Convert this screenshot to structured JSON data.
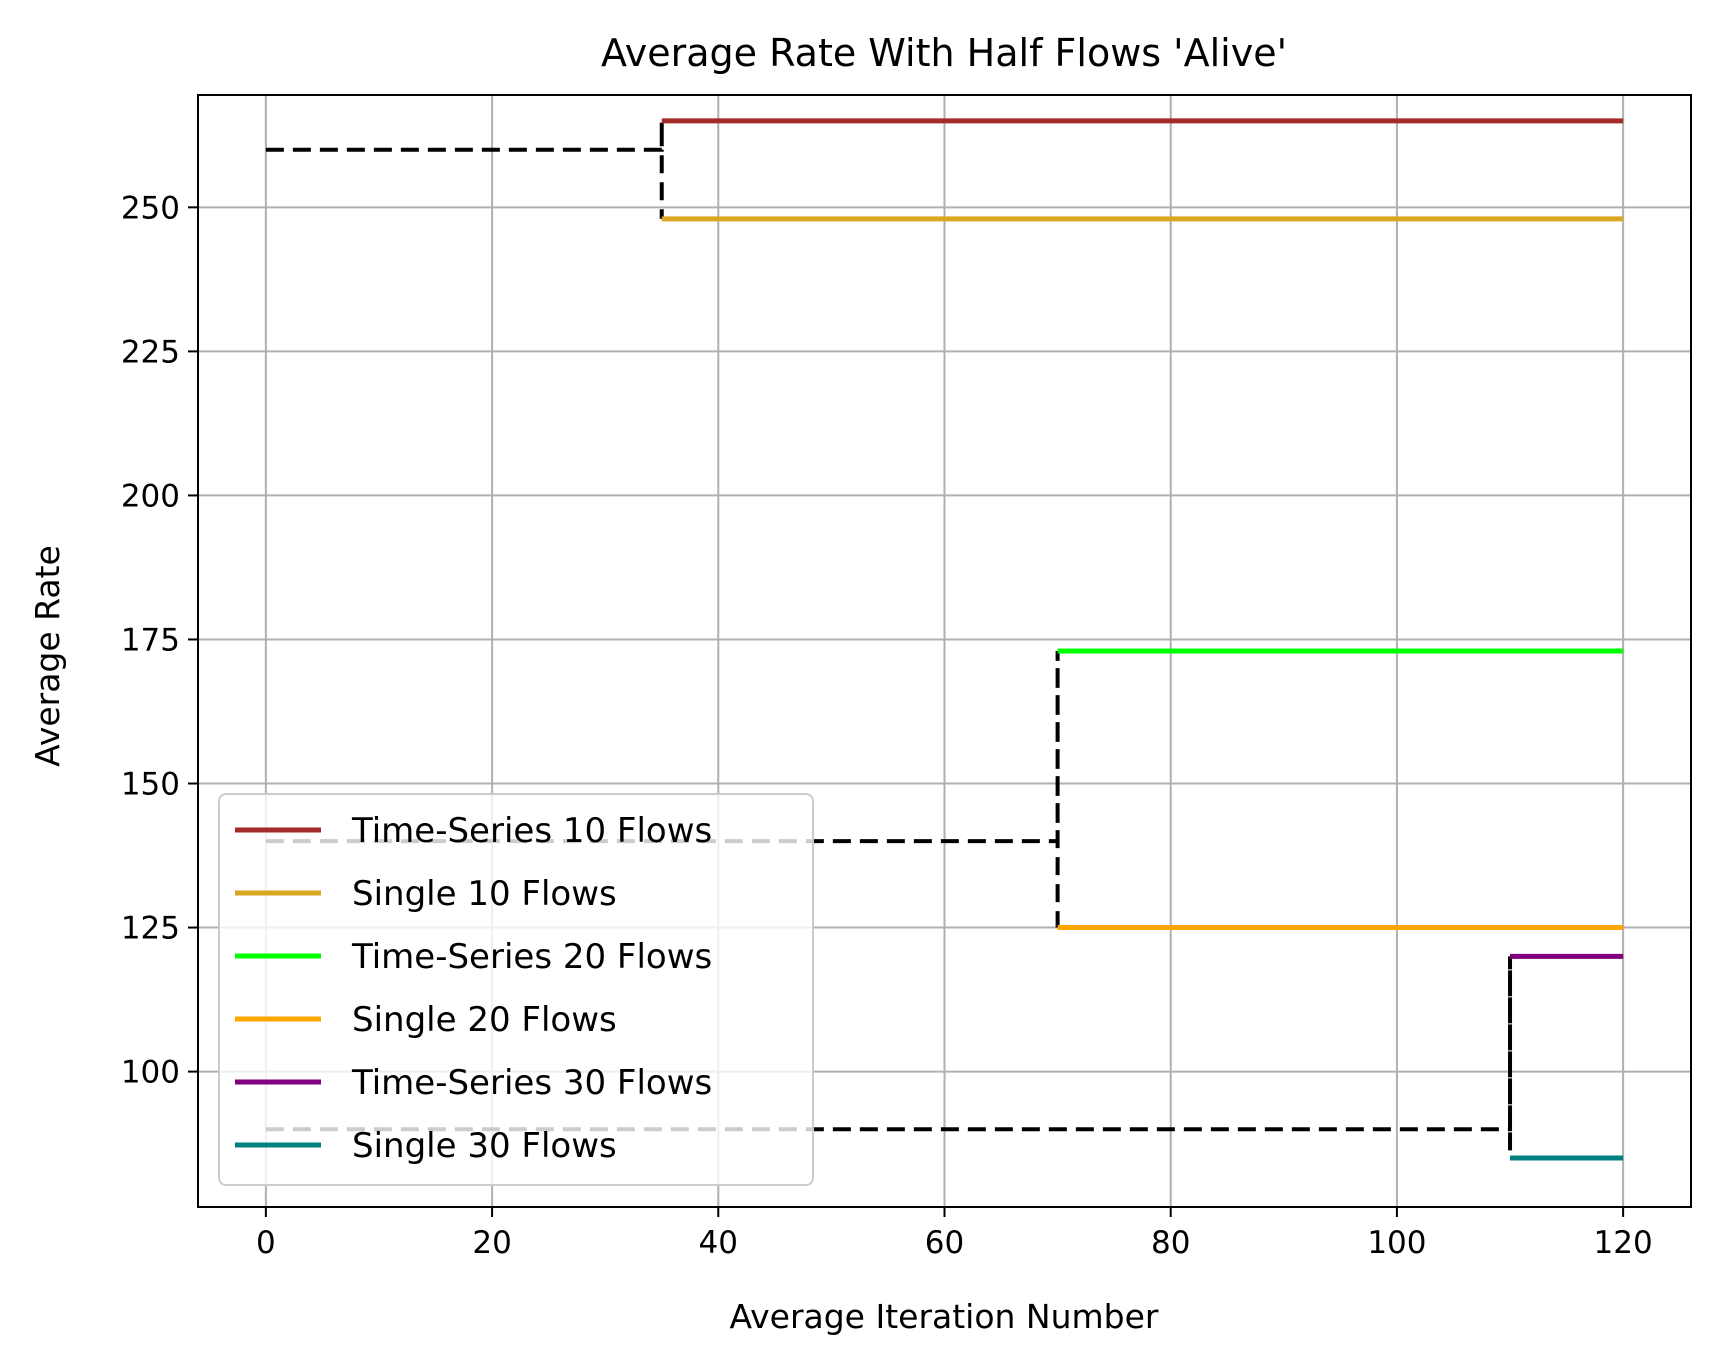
{
  "chart_data": {
    "type": "line",
    "title": "Average Rate With Half Flows 'Alive'",
    "xlabel": "Average Iteration Number",
    "ylabel": "Average Rate",
    "xlim": [
      -6,
      126
    ],
    "ylim": [
      76.5,
      269.5
    ],
    "xticks": [
      0,
      20,
      40,
      60,
      80,
      100,
      120
    ],
    "yticks": [
      100,
      125,
      150,
      175,
      200,
      225,
      250
    ],
    "grid": true,
    "legend_position": "lower-left",
    "series": [
      {
        "name": "Time-Series 10 Flows",
        "color": "#a52a2a",
        "style": "solid",
        "x": [
          35,
          120
        ],
        "y": [
          265,
          265
        ]
      },
      {
        "name": "Single 10 Flows",
        "color": "#daa520",
        "style": "solid",
        "x": [
          35,
          120
        ],
        "y": [
          248,
          248
        ]
      },
      {
        "name": "Time-Series 20 Flows",
        "color": "#00ff00",
        "style": "solid",
        "x": [
          70,
          120
        ],
        "y": [
          173,
          173
        ]
      },
      {
        "name": "Single 20 Flows",
        "color": "#ffa500",
        "style": "solid",
        "x": [
          70,
          120
        ],
        "y": [
          125,
          125
        ]
      },
      {
        "name": "Time-Series 30 Flows",
        "color": "#800080",
        "style": "solid",
        "x": [
          110,
          120
        ],
        "y": [
          120,
          120
        ]
      },
      {
        "name": "Single 30 Flows",
        "color": "#008080",
        "style": "solid",
        "x": [
          110,
          120
        ],
        "y": [
          85,
          85
        ]
      }
    ],
    "reference_lines": [
      {
        "color": "#000000",
        "style": "dashed",
        "x": [
          0,
          35,
          35,
          35
        ],
        "y": [
          260,
          260,
          265,
          248
        ]
      },
      {
        "color": "#000000",
        "style": "dashed",
        "x": [
          0,
          70,
          70,
          70
        ],
        "y": [
          140,
          140,
          173,
          125
        ]
      },
      {
        "color": "#000000",
        "style": "dashed",
        "x": [
          0,
          110,
          110,
          110
        ],
        "y": [
          90,
          90,
          120,
          85
        ]
      }
    ]
  }
}
